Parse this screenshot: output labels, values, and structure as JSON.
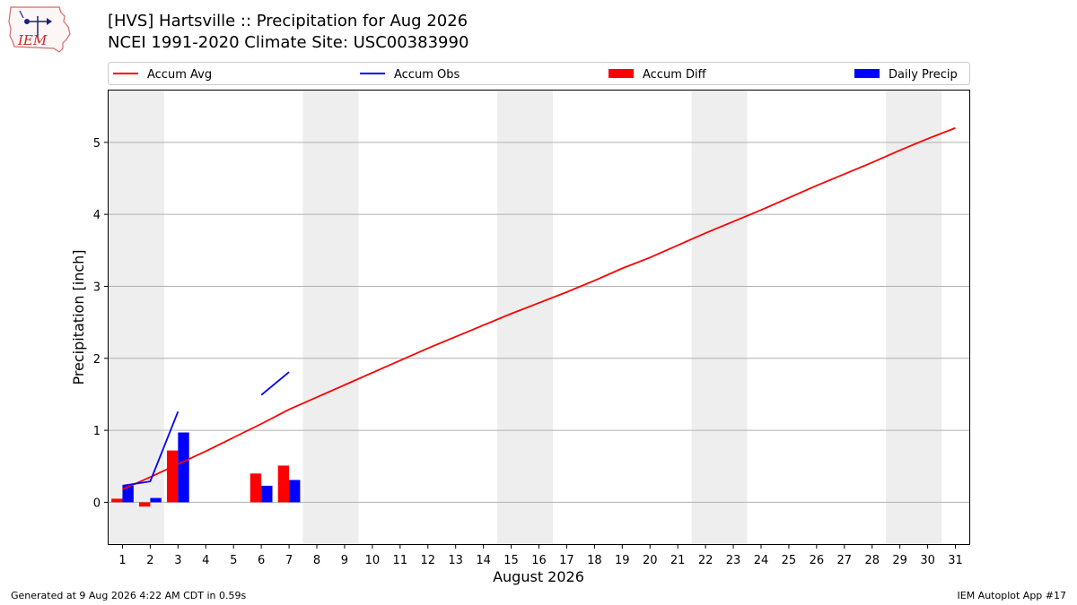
{
  "header": {
    "logo_text": "IEM",
    "title_line1": "[HVS] Hartsville :: Precipitation for Aug 2026",
    "title_line2": "NCEI 1991-2020 Climate Site: USC00383990"
  },
  "footer": {
    "generated": "Generated at 9 Aug 2026 4:22 AM CDT in 0.59s",
    "app": "IEM Autoplot App #17"
  },
  "colors": {
    "avg": "#ff0000",
    "obs": "#0000ff",
    "diff": "#ff0000",
    "daily": "#0000ff",
    "weekend_band": "#eeeeee",
    "grid": "#b0b0b0"
  },
  "chart_data": {
    "type": "bar",
    "xlabel": "August 2026",
    "ylabel": "Precipitation [inch]",
    "xlim": [
      0.5,
      31.5
    ],
    "ylim": [
      -0.58,
      5.72
    ],
    "yticks": [
      0,
      1,
      2,
      3,
      4,
      5
    ],
    "grid": true,
    "legend_placement": "top",
    "x": [
      1,
      2,
      3,
      4,
      5,
      6,
      7,
      8,
      9,
      10,
      11,
      12,
      13,
      14,
      15,
      16,
      17,
      18,
      19,
      20,
      21,
      22,
      23,
      24,
      25,
      26,
      27,
      28,
      29,
      30,
      31
    ],
    "weekend_bands": [
      [
        0.5,
        2.5
      ],
      [
        7.5,
        9.5
      ],
      [
        14.5,
        16.5
      ],
      [
        21.5,
        23.5
      ],
      [
        28.5,
        30.5
      ]
    ],
    "legend": [
      {
        "name": "Accum Avg",
        "kind": "line",
        "color": "#ff0000"
      },
      {
        "name": "Accum Obs",
        "kind": "line",
        "color": "#0000ff"
      },
      {
        "name": "Accum Diff",
        "kind": "bar",
        "color": "#ff0000"
      },
      {
        "name": "Daily Precip",
        "kind": "bar",
        "color": "#0000ff"
      }
    ],
    "series": [
      {
        "name": "Accum Avg",
        "type": "line",
        "values": [
          0.18,
          0.35,
          0.53,
          0.71,
          0.9,
          1.09,
          1.29,
          1.46,
          1.63,
          1.8,
          1.97,
          2.14,
          2.3,
          2.46,
          2.62,
          2.77,
          2.92,
          3.08,
          3.25,
          3.4,
          3.57,
          3.74,
          3.9,
          4.06,
          4.23,
          4.4,
          4.56,
          4.72,
          4.89,
          5.05,
          5.2
        ]
      },
      {
        "name": "Accum Obs",
        "type": "line",
        "values": [
          0.23,
          0.29,
          1.26,
          null,
          null,
          1.49,
          1.81,
          null,
          null,
          null,
          null,
          null,
          null,
          null,
          null,
          null,
          null,
          null,
          null,
          null,
          null,
          null,
          null,
          null,
          null,
          null,
          null,
          null,
          null,
          null,
          null
        ]
      },
      {
        "name": "Accum Diff",
        "type": "bar",
        "values": [
          0.05,
          -0.06,
          0.72,
          null,
          null,
          0.4,
          0.51,
          null,
          null,
          null,
          null,
          null,
          null,
          null,
          null,
          null,
          null,
          null,
          null,
          null,
          null,
          null,
          null,
          null,
          null,
          null,
          null,
          null,
          null,
          null,
          null
        ]
      },
      {
        "name": "Daily Precip",
        "type": "bar",
        "values": [
          0.23,
          0.06,
          0.97,
          null,
          null,
          0.23,
          0.31,
          null,
          null,
          null,
          null,
          null,
          null,
          null,
          null,
          null,
          null,
          null,
          null,
          null,
          null,
          null,
          null,
          null,
          null,
          null,
          null,
          null,
          null,
          null,
          null
        ]
      }
    ]
  }
}
